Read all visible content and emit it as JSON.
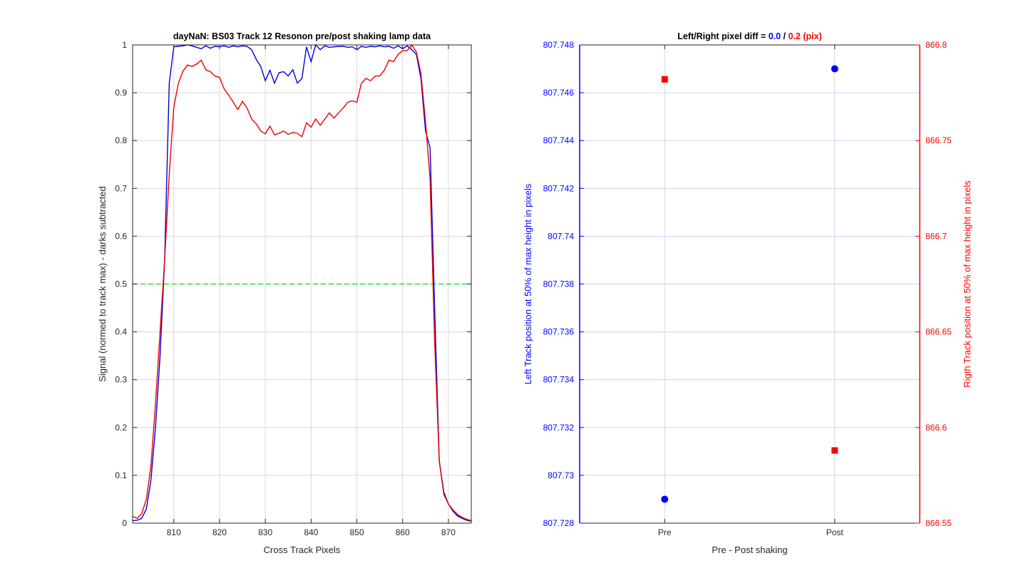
{
  "chart_data": [
    {
      "type": "line",
      "title": "dayNaN: BS03  Track 12 Resonon pre/post shaking lamp data",
      "xlabel": "Cross Track Pixels",
      "ylabel": "Signal (normed to track max) - darks subtracted",
      "xlim": [
        801,
        875
      ],
      "ylim": [
        0,
        1
      ],
      "xticks": [
        "810",
        "820",
        "830",
        "840",
        "850",
        "860",
        "870"
      ],
      "yticks": [
        "0",
        "0.1",
        "0.2",
        "0.3",
        "0.4",
        "0.5",
        "0.6",
        "0.7",
        "0.8",
        "0.9",
        "1"
      ],
      "grid": true,
      "threshold": {
        "y": 0.5,
        "color": "#33dd33",
        "style": "dashed"
      },
      "series": [
        {
          "color": "#0000dd",
          "x": [
            801,
            802,
            803,
            804,
            805,
            806,
            807,
            808,
            809,
            810,
            811,
            812,
            813,
            814,
            815,
            816,
            817,
            818,
            819,
            820,
            821,
            822,
            823,
            824,
            825,
            826,
            827,
            828,
            829,
            830,
            831,
            832,
            833,
            834,
            835,
            836,
            837,
            838,
            839,
            840,
            841,
            842,
            843,
            844,
            845,
            846,
            847,
            848,
            849,
            850,
            851,
            852,
            853,
            854,
            855,
            856,
            857,
            858,
            859,
            860,
            861,
            862,
            863,
            864,
            865,
            866,
            867,
            868,
            869,
            870,
            871,
            872,
            873,
            874,
            875
          ],
          "y": [
            0.005,
            0.006,
            0.01,
            0.03,
            0.09,
            0.2,
            0.35,
            0.55,
            0.92,
            0.996,
            0.997,
            0.998,
            1.0,
            0.998,
            0.995,
            0.992,
            0.998,
            0.993,
            0.997,
            0.996,
            0.998,
            0.995,
            0.998,
            0.996,
            0.998,
            0.997,
            0.99,
            0.97,
            0.955,
            0.925,
            0.947,
            0.92,
            0.942,
            0.944,
            0.935,
            0.948,
            0.92,
            0.93,
            0.996,
            0.965,
            1.0,
            0.99,
            0.998,
            0.995,
            0.996,
            0.997,
            0.997,
            0.995,
            0.996,
            0.99,
            0.997,
            0.995,
            0.997,
            0.996,
            0.998,
            0.996,
            0.997,
            0.993,
            0.998,
            0.992,
            0.998,
            0.99,
            0.98,
            0.93,
            0.82,
            0.785,
            0.45,
            0.13,
            0.065,
            0.04,
            0.025,
            0.015,
            0.01,
            0.006,
            0.004
          ]
        },
        {
          "color": "#ee0000",
          "x": [
            801,
            802,
            803,
            804,
            805,
            806,
            807,
            808,
            809,
            810,
            811,
            812,
            813,
            814,
            815,
            816,
            817,
            818,
            819,
            820,
            821,
            822,
            823,
            824,
            825,
            826,
            827,
            828,
            829,
            830,
            831,
            832,
            833,
            834,
            835,
            836,
            837,
            838,
            839,
            840,
            841,
            842,
            843,
            844,
            845,
            846,
            847,
            848,
            849,
            850,
            851,
            852,
            853,
            854,
            855,
            856,
            857,
            858,
            859,
            860,
            861,
            862,
            863,
            864,
            865,
            866,
            867,
            868,
            869,
            870,
            871,
            872,
            873,
            874,
            875
          ],
          "y": [
            0.014,
            0.01,
            0.02,
            0.05,
            0.12,
            0.25,
            0.4,
            0.55,
            0.73,
            0.87,
            0.92,
            0.945,
            0.958,
            0.955,
            0.96,
            0.968,
            0.948,
            0.944,
            0.935,
            0.932,
            0.908,
            0.895,
            0.88,
            0.865,
            0.882,
            0.868,
            0.845,
            0.835,
            0.82,
            0.814,
            0.83,
            0.812,
            0.815,
            0.82,
            0.813,
            0.817,
            0.815,
            0.808,
            0.837,
            0.828,
            0.845,
            0.832,
            0.845,
            0.858,
            0.847,
            0.858,
            0.868,
            0.88,
            0.883,
            0.88,
            0.92,
            0.93,
            0.925,
            0.935,
            0.935,
            0.947,
            0.968,
            0.965,
            0.98,
            0.988,
            0.988,
            1.0,
            0.985,
            0.94,
            0.84,
            0.72,
            0.38,
            0.13,
            0.06,
            0.04,
            0.028,
            0.018,
            0.012,
            0.008,
            0.005
          ]
        }
      ]
    },
    {
      "type": "scatter",
      "title_prefix": "Left/Right pixel diff = ",
      "title_left_value": "0.0",
      "title_sep": " / ",
      "title_right_value": "0.2 (pix)",
      "xlabel": "Pre - Post shaking",
      "categories": [
        "Pre",
        "Post"
      ],
      "left_axis": {
        "label": "Left Track position at 50% of max height in pixels",
        "color": "#0000ff",
        "ylim": [
          807.728,
          807.748
        ],
        "ticks": [
          "807.728",
          "807.73",
          "807.732",
          "807.734",
          "807.736",
          "807.738",
          "807.74",
          "807.742",
          "807.744",
          "807.746",
          "807.748"
        ]
      },
      "right_axis": {
        "label": "Rigth Track position at 50% of max height in pixels",
        "color": "#ff0000",
        "ylim": [
          866.55,
          866.8
        ],
        "ticks": [
          "866.55",
          "866.6",
          "866.65",
          "866.7",
          "866.75",
          "866.8"
        ]
      },
      "series": [
        {
          "axis": "left",
          "marker": "circle",
          "color": "#0000ff",
          "values": [
            807.729,
            807.747
          ]
        },
        {
          "axis": "right",
          "marker": "square",
          "color": "#ff0000",
          "values": [
            866.782,
            866.588
          ]
        }
      ],
      "grid": true
    }
  ]
}
